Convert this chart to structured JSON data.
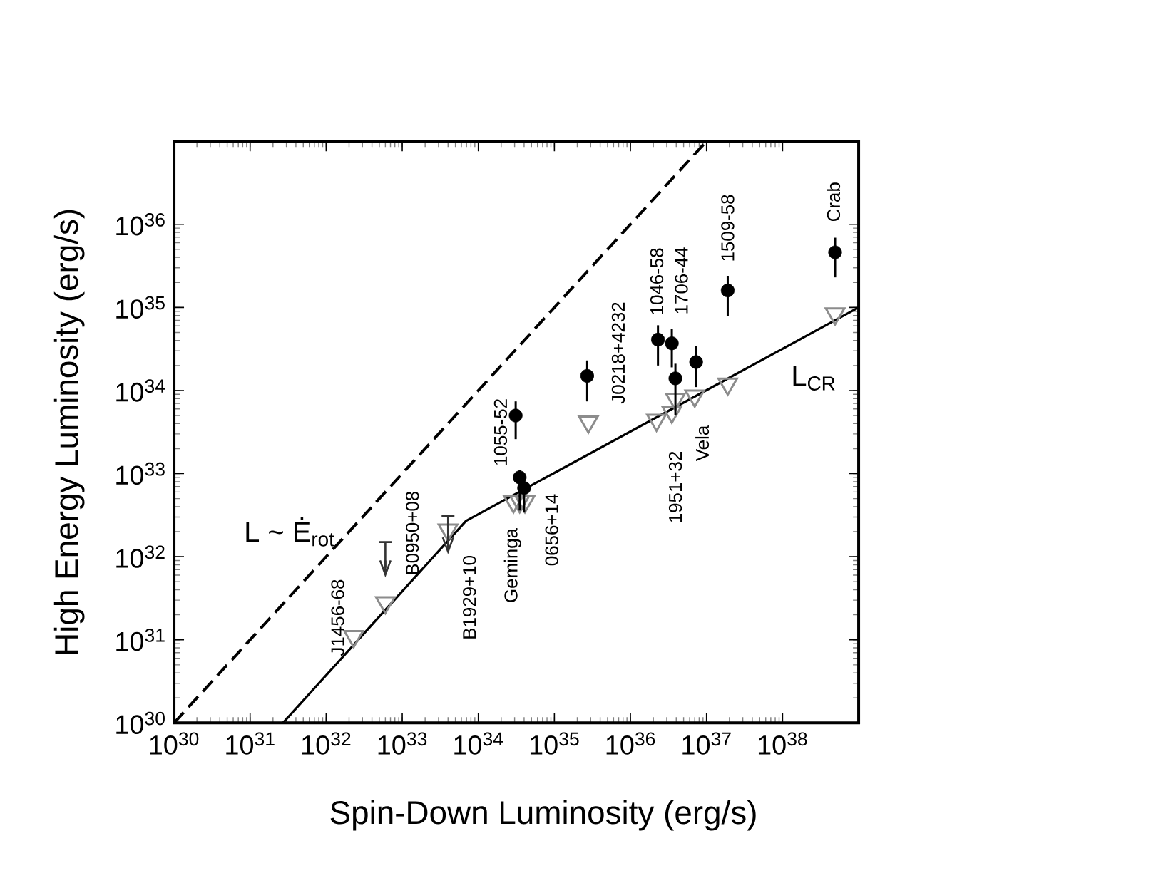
{
  "chart_data": {
    "type": "scatter",
    "xlabel": "Spin-Down Luminosity (erg/s)",
    "ylabel": "High Energy Luminosity (erg/s)",
    "log": "xy",
    "xlim": [
      1e+30,
      1e+39
    ],
    "ylim": [
      1e+30,
      1e+37
    ],
    "xticks": [
      {
        "value": 1e+30,
        "label": "10$^{30}$"
      },
      {
        "value": 1e+31,
        "label": "10$^{31}$"
      },
      {
        "value": 1e+32,
        "label": "10$^{32}$"
      },
      {
        "value": 1e+33,
        "label": "10$^{33}$"
      },
      {
        "value": 1e+34,
        "label": "10$^{34}$"
      },
      {
        "value": 1e+35,
        "label": "10$^{35}$"
      },
      {
        "value": 1e+36,
        "label": "10$^{36}$"
      },
      {
        "value": 1e+37,
        "label": "10$^{37}$"
      },
      {
        "value": 1e+38,
        "label": "10$^{38}$"
      }
    ],
    "yticks": [
      {
        "value": 1e+30,
        "label": "10$^{30}$"
      },
      {
        "value": 1e+31,
        "label": "10$^{31}$"
      },
      {
        "value": 1e+32,
        "label": "10$^{32}$"
      },
      {
        "value": 1e+33,
        "label": "10$^{33}$"
      },
      {
        "value": 1e+34,
        "label": "10$^{34}$"
      },
      {
        "value": 1e+35,
        "label": "10$^{35}$"
      },
      {
        "value": 1e+36,
        "label": "10$^{36}$"
      }
    ],
    "series": [
      {
        "name": "L ~ Ė$_{rot}$",
        "type": "line",
        "color": "#000000",
        "line_style": "dashed",
        "marker": "none",
        "x": [
          1e+30,
          1e+37
        ],
        "values": [
          1e+30,
          1e+37
        ]
      },
      {
        "name": "L$_{CR}$",
        "type": "line",
        "color": "#000000",
        "line_style": "solid",
        "marker": "none",
        "x": [
          2.7e+31,
          6.9e+33,
          1e+39
        ],
        "values": [
          1e+30,
          2.7e+32,
          1e+35
        ]
      },
      {
        "color": "#8c8c8c",
        "marker": "triangle",
        "x": [
          2.3e+32,
          6e+32,
          4e+33,
          2.9e+34,
          3.5e+34,
          4.1e+34,
          2.8e+35,
          2.2e+36,
          3.5e+36,
          3.9e+36,
          7e+36,
          1.9e+37,
          4.9e+38
        ],
        "values": [
          1.1e+31,
          2.8e+31,
          2.1e+32,
          4.6e+32,
          4.6e+32,
          4.6e+32,
          4.2e+33,
          4.4e+33,
          5.5e+33,
          7.9e+33,
          8.6e+33,
          1.2e+34,
          8.4e+34
        ]
      },
      {
        "color": "#000000",
        "marker": "circle",
        "x": [
          3.1e+34,
          3.5e+34,
          4e+34,
          2.7e+35,
          2.3e+36,
          3.5e+36,
          3.9e+36,
          7.3e+36,
          1.9e+37,
          4.9e+38
        ],
        "values": [
          5e+33,
          9e+32,
          6.7e+32,
          1.5e+34,
          4.1e+34,
          3.7e+34,
          1.4e+34,
          2.2e+34,
          1.6e+35,
          4.6e+35
        ],
        "errors": [
          [
            2.6e+33,
            7.4e+33
          ],
          [
            3.6e+32,
            1.1e+33
          ],
          [
            3.4e+32,
            9.7e+32
          ],
          [
            7.4e+33,
            2.3e+34
          ],
          [
            2e+34,
            6.1e+34
          ],
          [
            1.9e+34,
            5.5e+34
          ],
          [
            5e+33,
            2.1e+34
          ],
          [
            1.1e+34,
            3.4e+34
          ],
          [
            7.9e+34,
            2.4e+35
          ],
          [
            2.3e+35,
            6.9e+35
          ]
        ]
      },
      {
        "color": "#333333",
        "x": [
          6e+32,
          4e+33
        ],
        "values": [
          7.4e+31,
          1.4e+32
        ],
        "errors": [
          [
            7.4e+31,
            1.5e+32
          ],
          [
            1.4e+32,
            3.1e+32
          ]
        ]
      }
    ],
    "annotations": [
      {
        "text": "J1456-68",
        "x": 2.3e+32,
        "y": 1.1e+31
      },
      {
        "text": "B0950+08",
        "x": 6e+32,
        "y": 7.4e+31
      },
      {
        "text": "B1929+10",
        "x": 4e+33,
        "y": 2.1e+32
      },
      {
        "text": "Geminga",
        "x": 3.5e+34,
        "y": 4.6e+32
      },
      {
        "text": "0656+14",
        "x": 4.1e+34,
        "y": 4.6e+32
      },
      {
        "text": "1055-52",
        "x": 3.1e+34,
        "y": 5e+33
      },
      {
        "text": "J0218+4232",
        "x": 2.7e+35,
        "y": 1.5e+34
      },
      {
        "text": "1046-58",
        "x": 2.3e+36,
        "y": 4.1e+34
      },
      {
        "text": "1706-44",
        "x": 3.5e+36,
        "y": 3.7e+34
      },
      {
        "text": "1509-58",
        "x": 1.9e+37,
        "y": 1.6e+35
      },
      {
        "text": "Crab",
        "x": 4.9e+38,
        "y": 4.6e+35
      },
      {
        "text": "1951+32",
        "x": 3.9e+36,
        "y": 7.9e+33
      },
      {
        "text": "Vela",
        "x": 7e+36,
        "y": 8.6e+33
      }
    ]
  }
}
